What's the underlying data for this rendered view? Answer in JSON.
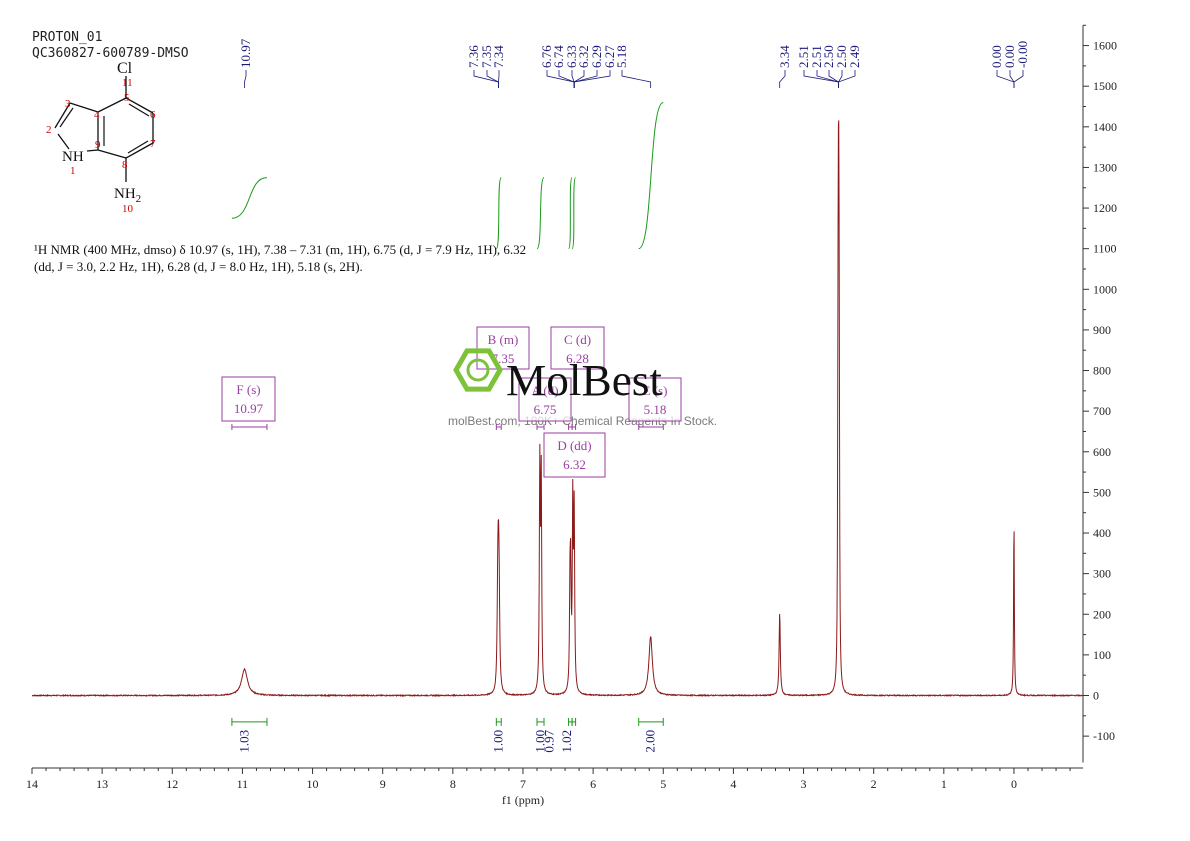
{
  "header": {
    "line1": "PROTON_01",
    "line2": "QC360827-600789-DMSO"
  },
  "nmr_description": {
    "line1": "¹H NMR (400 MHz, dmso) δ 10.97 (s, 1H), 7.38 – 7.31 (m, 1H), 6.75 (d, J = 7.9 Hz, 1H), 6.32",
    "line2": "(dd, J = 3.0, 2.2 Hz, 1H), 6.28 (d, J = 8.0 Hz, 1H), 5.18 (s, 2H)."
  },
  "watermark": {
    "logo_text": "MolBest",
    "tagline": "molBest.com, 180K+ Chemical Reagents In Stock."
  },
  "molecule": {
    "atoms": [
      {
        "sym": "Cl",
        "num": "11"
      },
      {
        "sym": "NH",
        "num": "1"
      },
      {
        "sym": "NH2",
        "num": "10"
      }
    ],
    "ring_numbers": [
      "2",
      "3",
      "4",
      "5",
      "6",
      "7",
      "8",
      "9"
    ]
  },
  "colors": {
    "spectrum": "#8b1a1a",
    "integral": "#1a9a1a",
    "label_text": "#1a1a7a",
    "multiplet_box": "#9b3fa0",
    "atom_numbers": "#cc0000",
    "logo_green": "#7ec23a"
  },
  "chart_data": {
    "type": "line",
    "xlabel": "f1 (ppm)",
    "ylabel": "",
    "xlim": [
      14,
      -1
    ],
    "ylim": [
      -150,
      1650
    ],
    "x_reversed": true,
    "x_ticks": [
      14,
      13,
      12,
      11,
      10,
      9,
      8,
      7,
      6,
      5,
      4,
      3,
      2,
      1,
      0
    ],
    "y_ticks": [
      1600,
      1500,
      1400,
      1300,
      1200,
      1100,
      1000,
      900,
      800,
      700,
      600,
      500,
      400,
      300,
      200,
      100,
      0,
      -100
    ],
    "y_axis_side": "right",
    "grid": false,
    "series": [
      {
        "peaks": [
          {
            "ppm": 10.97,
            "height": 65,
            "width": 0.05
          },
          {
            "ppm": 7.36,
            "height": 210,
            "width": 0.01
          },
          {
            "ppm": 7.35,
            "height": 240,
            "width": 0.01
          },
          {
            "ppm": 7.34,
            "height": 190,
            "width": 0.01
          },
          {
            "ppm": 6.76,
            "height": 545,
            "width": 0.008
          },
          {
            "ppm": 6.74,
            "height": 520,
            "width": 0.008
          },
          {
            "ppm": 6.33,
            "height": 230,
            "width": 0.008
          },
          {
            "ppm": 6.32,
            "height": 255,
            "width": 0.008
          },
          {
            "ppm": 6.29,
            "height": 450,
            "width": 0.008
          },
          {
            "ppm": 6.27,
            "height": 430,
            "width": 0.008
          },
          {
            "ppm": 5.18,
            "height": 145,
            "width": 0.03
          },
          {
            "ppm": 3.34,
            "height": 205,
            "width": 0.01
          },
          {
            "ppm": 2.51,
            "height": 380,
            "width": 0.006
          },
          {
            "ppm": 2.505,
            "height": 560,
            "width": 0.006
          },
          {
            "ppm": 2.5,
            "height": 600,
            "width": 0.006
          },
          {
            "ppm": 2.495,
            "height": 540,
            "width": 0.006
          },
          {
            "ppm": 2.49,
            "height": 360,
            "width": 0.006
          },
          {
            "ppm": 0.0,
            "height": 450,
            "width": 0.006
          }
        ]
      }
    ],
    "peak_labels": [
      {
        "group": 1,
        "ppm": 10.97,
        "text": "10.97"
      },
      {
        "group": 2,
        "ppm": 7.36,
        "text": "7.36"
      },
      {
        "group": 2,
        "ppm": 7.35,
        "text": "7.35"
      },
      {
        "group": 2,
        "ppm": 7.34,
        "text": "7.34"
      },
      {
        "group": 3,
        "ppm": 6.76,
        "text": "6.76"
      },
      {
        "group": 3,
        "ppm": 6.74,
        "text": "6.74"
      },
      {
        "group": 3,
        "ppm": 6.33,
        "text": "6.33"
      },
      {
        "group": 3,
        "ppm": 6.32,
        "text": "6.32"
      },
      {
        "group": 3,
        "ppm": 6.29,
        "text": "6.29"
      },
      {
        "group": 3,
        "ppm": 6.27,
        "text": "6.27"
      },
      {
        "group": 3,
        "ppm": 5.18,
        "text": "5.18"
      },
      {
        "group": 4,
        "ppm": 3.34,
        "text": "3.34"
      },
      {
        "group": 5,
        "ppm": 2.51,
        "text": "2.51"
      },
      {
        "group": 5,
        "ppm": 2.51,
        "text": "2.51"
      },
      {
        "group": 5,
        "ppm": 2.5,
        "text": "2.50"
      },
      {
        "group": 5,
        "ppm": 2.5,
        "text": "2.50"
      },
      {
        "group": 5,
        "ppm": 2.49,
        "text": "2.49"
      },
      {
        "group": 6,
        "ppm": 0.0,
        "text": "0.00"
      },
      {
        "group": 6,
        "ppm": 0.0,
        "text": "0.00"
      },
      {
        "group": 6,
        "ppm": 0.0,
        "text": "-0.00"
      }
    ],
    "integrals": [
      {
        "from": 11.15,
        "to": 10.65,
        "value": "1.03"
      },
      {
        "from": 7.38,
        "to": 7.31,
        "value": "1.00"
      },
      {
        "from": 6.8,
        "to": 6.7,
        "value": "1.00"
      },
      {
        "from": 6.35,
        "to": 6.3,
        "value": "0.97"
      },
      {
        "from": 6.3,
        "to": 6.25,
        "value": "1.02"
      },
      {
        "from": 5.35,
        "to": 5.0,
        "value": "2.00"
      }
    ],
    "integral_curve_levels": [
      [
        1175,
        1275
      ],
      [
        1100,
        1275
      ],
      [
        1100,
        1275
      ],
      [
        1100,
        1275
      ],
      [
        1100,
        1275
      ],
      [
        1100,
        1460
      ]
    ],
    "multiplets": [
      {
        "id": "F",
        "type": "s",
        "ppm": "10.97",
        "range": [
          11.15,
          10.65
        ]
      },
      {
        "id": "B",
        "type": "m",
        "ppm": "7.35",
        "range": [
          7.38,
          7.31
        ]
      },
      {
        "id": "C",
        "type": "d",
        "ppm": "6.28",
        "range": [
          6.3,
          6.25
        ]
      },
      {
        "id": "A",
        "type": "d",
        "ppm": "6.75",
        "range": [
          6.8,
          6.7
        ]
      },
      {
        "id": "E",
        "type": "s",
        "ppm": "5.18",
        "range": [
          5.35,
          5.0
        ]
      },
      {
        "id": "D",
        "type": "dd",
        "ppm": "6.32",
        "range": [
          6.35,
          6.3
        ]
      }
    ]
  }
}
